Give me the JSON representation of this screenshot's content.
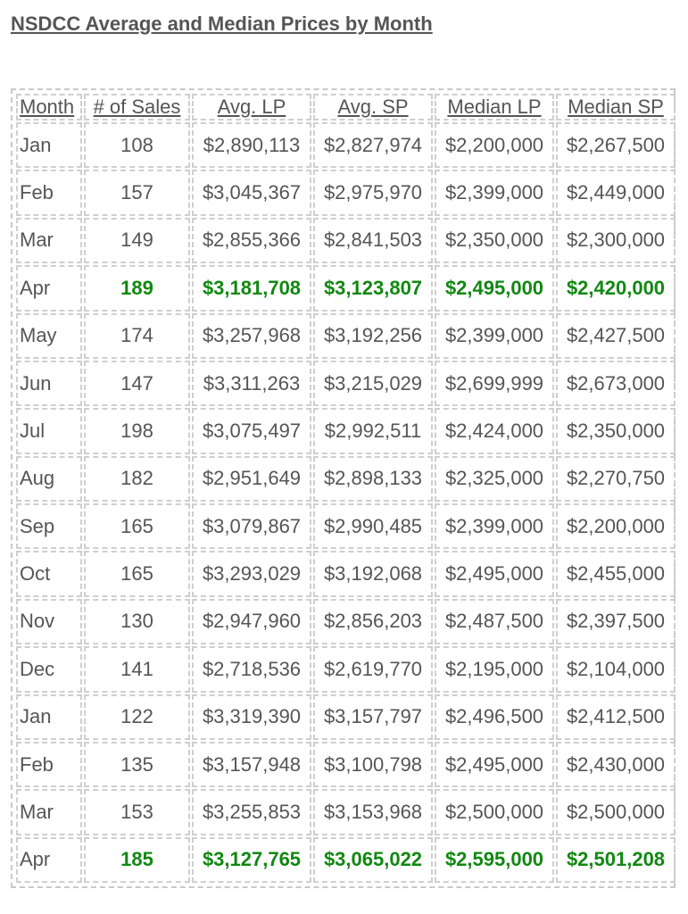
{
  "title": "NSDCC Average and Median Prices by Month",
  "highlight_color": "#118811",
  "text_color": "#555555",
  "table": {
    "headers": [
      "Month",
      "# of Sales",
      "Avg. LP",
      "Avg. SP",
      "Median LP",
      "Median SP"
    ],
    "rows": [
      {
        "month": "Jan",
        "sales": "108",
        "avg_lp": "$2,890,113",
        "avg_sp": "$2,827,974",
        "median_lp": "$2,200,000",
        "median_sp": "$2,267,500",
        "highlight": false
      },
      {
        "month": "Feb",
        "sales": "157",
        "avg_lp": "$3,045,367",
        "avg_sp": "$2,975,970",
        "median_lp": "$2,399,000",
        "median_sp": "$2,449,000",
        "highlight": false
      },
      {
        "month": "Mar",
        "sales": "149",
        "avg_lp": "$2,855,366",
        "avg_sp": "$2,841,503",
        "median_lp": "$2,350,000",
        "median_sp": "$2,300,000",
        "highlight": false
      },
      {
        "month": "Apr",
        "sales": "189",
        "avg_lp": "$3,181,708",
        "avg_sp": "$3,123,807",
        "median_lp": "$2,495,000",
        "median_sp": "$2,420,000",
        "highlight": true
      },
      {
        "month": "May",
        "sales": "174",
        "avg_lp": "$3,257,968",
        "avg_sp": "$3,192,256",
        "median_lp": "$2,399,000",
        "median_sp": "$2,427,500",
        "highlight": false
      },
      {
        "month": "Jun",
        "sales": "147",
        "avg_lp": "$3,311,263",
        "avg_sp": "$3,215,029",
        "median_lp": "$2,699,999",
        "median_sp": "$2,673,000",
        "highlight": false
      },
      {
        "month": "Jul",
        "sales": "198",
        "avg_lp": "$3,075,497",
        "avg_sp": "$2,992,511",
        "median_lp": "$2,424,000",
        "median_sp": "$2,350,000",
        "highlight": false
      },
      {
        "month": "Aug",
        "sales": "182",
        "avg_lp": "$2,951,649",
        "avg_sp": "$2,898,133",
        "median_lp": "$2,325,000",
        "median_sp": "$2,270,750",
        "highlight": false
      },
      {
        "month": "Sep",
        "sales": "165",
        "avg_lp": "$3,079,867",
        "avg_sp": "$2,990,485",
        "median_lp": "$2,399,000",
        "median_sp": "$2,200,000",
        "highlight": false
      },
      {
        "month": "Oct",
        "sales": "165",
        "avg_lp": "$3,293,029",
        "avg_sp": "$3,192,068",
        "median_lp": "$2,495,000",
        "median_sp": "$2,455,000",
        "highlight": false
      },
      {
        "month": "Nov",
        "sales": "130",
        "avg_lp": "$2,947,960",
        "avg_sp": "$2,856,203",
        "median_lp": "$2,487,500",
        "median_sp": "$2,397,500",
        "highlight": false
      },
      {
        "month": "Dec",
        "sales": "141",
        "avg_lp": "$2,718,536",
        "avg_sp": "$2,619,770",
        "median_lp": "$2,195,000",
        "median_sp": "$2,104,000",
        "highlight": false
      },
      {
        "month": "Jan",
        "sales": "122",
        "avg_lp": "$3,319,390",
        "avg_sp": "$3,157,797",
        "median_lp": "$2,496,500",
        "median_sp": "$2,412,500",
        "highlight": false
      },
      {
        "month": "Feb",
        "sales": "135",
        "avg_lp": "$3,157,948",
        "avg_sp": "$3,100,798",
        "median_lp": "$2,495,000",
        "median_sp": "$2,430,000",
        "highlight": false
      },
      {
        "month": "Mar",
        "sales": "153",
        "avg_lp": "$3,255,853",
        "avg_sp": "$3,153,968",
        "median_lp": "$2,500,000",
        "median_sp": "$2,500,000",
        "highlight": false
      },
      {
        "month": "Apr",
        "sales": "185",
        "avg_lp": "$3,127,765",
        "avg_sp": "$3,065,022",
        "median_lp": "$2,595,000",
        "median_sp": "$2,501,208",
        "highlight": true
      }
    ]
  }
}
